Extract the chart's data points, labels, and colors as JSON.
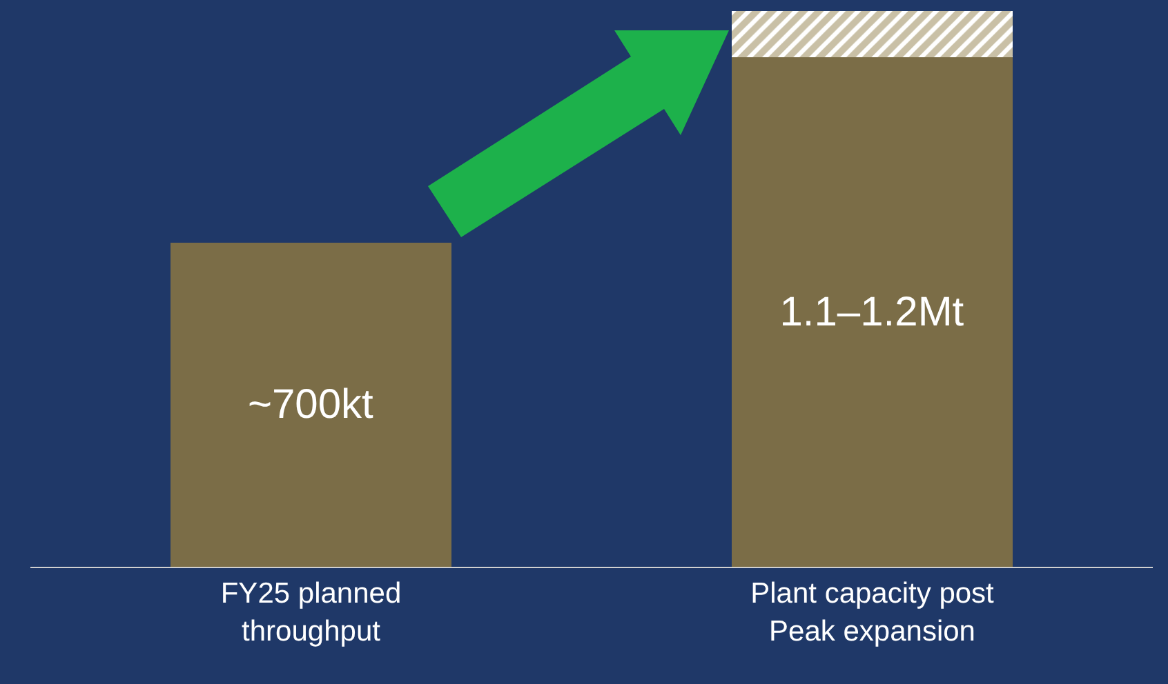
{
  "chart_data": {
    "type": "bar",
    "ylim": [
      0,
      1200
    ],
    "stacked": true,
    "tick_labels": "x",
    "categories": [
      "FY25 planned\nthroughput",
      "Plant capacity post\nPeak expansion"
    ],
    "series": [
      {
        "color": "#7b6d47",
        "values": [
          700,
          1100
        ],
        "value_labels": [
          "~700kt",
          "1.1–1.2Mt"
        ]
      },
      {
        "color": "#c9c0a6",
        "values": [
          null,
          100
        ]
      }
    ]
  }
}
